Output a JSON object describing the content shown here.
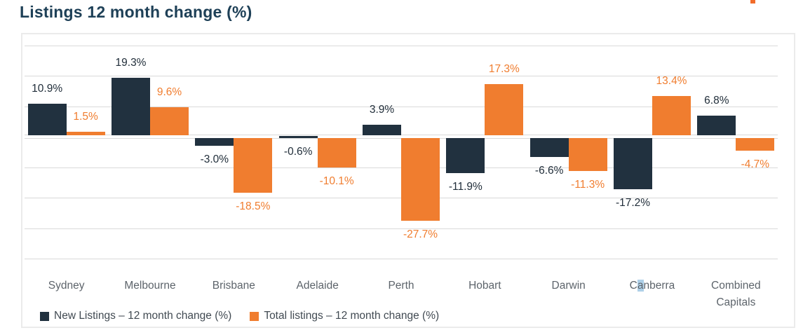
{
  "page": {
    "title": "Listings 12 month change (%)"
  },
  "decor": {
    "logo_fragment_color": "#f26c2a"
  },
  "colors": {
    "navy": "#21313f",
    "orange": "#f07d2f",
    "gridline": "#d9d9d9",
    "card_border": "#ebebeb",
    "title_text": "#1e4057",
    "category_text": "#5d646b",
    "legend_text": "#414a52",
    "selection_highlight": "#aed0e8"
  },
  "chart_data": {
    "type": "bar",
    "title": "Listings 12 month change (%)",
    "categories": [
      "Sydney",
      "Melbourne",
      "Brisbane",
      "Adelaide",
      "Perth",
      "Hobart",
      "Darwin",
      "Canberra",
      "Combined Capitals"
    ],
    "series": [
      {
        "name": "New Listings – 12 month change (%)",
        "color": "#21313f",
        "values": [
          10.9,
          19.3,
          -3.0,
          -0.6,
          3.9,
          -11.9,
          -6.6,
          -17.2,
          6.8
        ],
        "labels": [
          "10.9%",
          "19.3%",
          "-3.0%",
          "-0.6%",
          "3.9%",
          "-11.9%",
          "-6.6%",
          "-17.2%",
          "6.8%"
        ]
      },
      {
        "name": "Total listings – 12 month change (%)",
        "color": "#f07d2f",
        "values": [
          1.5,
          9.6,
          -18.5,
          -10.1,
          -27.7,
          17.3,
          -11.3,
          13.4,
          -4.7
        ],
        "labels": [
          "1.5%",
          "9.6%",
          "-18.5%",
          "-10.1%",
          "-27.7%",
          "17.3%",
          "-11.3%",
          "13.4%",
          "-4.7%"
        ]
      }
    ],
    "value_suffix": "%",
    "ylim": [
      -40,
      30
    ],
    "gridline_step": 10,
    "y_axis_labels_visible": false,
    "grid": true,
    "legend_position": "bottom-left",
    "text_selection_highlight": {
      "category": "Canberra",
      "char_index": 1
    }
  }
}
